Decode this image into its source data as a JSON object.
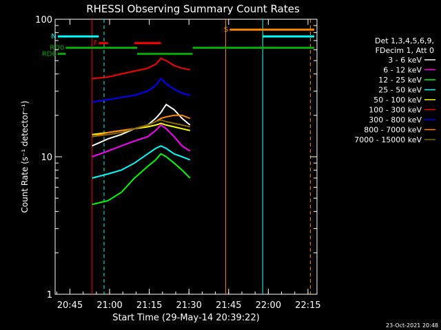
{
  "chart_data": {
    "type": "line",
    "title": "RHESSI Observing Summary Count Rates",
    "xlabel": "Start Time (29-May-14 20:39:22)",
    "ylabel": "Count Rate (s⁻¹ detector⁻¹)",
    "footer": "23-Oct-2021 20:48",
    "x_unit": "minutes since 20:39:22",
    "xlim": [
      0,
      99
    ],
    "ylim": [
      1,
      100
    ],
    "yscale": "log",
    "x_ticks": [
      {
        "label": "20:45",
        "value": 5.6
      },
      {
        "label": "21:00",
        "value": 20.6
      },
      {
        "label": "21:15",
        "value": 35.6
      },
      {
        "label": "21:30",
        "value": 50.6
      },
      {
        "label": "21:45",
        "value": 65.6
      },
      {
        "label": "22:00",
        "value": 80.6
      },
      {
        "label": "22:15",
        "value": 95.6
      }
    ],
    "y_ticks": [
      {
        "label": "1",
        "value": 1
      },
      {
        "label": "10",
        "value": 10
      },
      {
        "label": "100",
        "value": 100
      }
    ],
    "legend_header": [
      "Det 1,3,4,5,6,9,",
      "FDecim 1, Att 0"
    ],
    "legend_position": "right",
    "series": [
      {
        "name": "3 - 6 keV",
        "color": "#ffffff",
        "x": [
          14,
          20,
          25,
          30,
          35,
          38,
          40,
          42,
          45,
          48,
          51
        ],
        "y": [
          12,
          13.5,
          14.5,
          16,
          17,
          19,
          21,
          24,
          22,
          19,
          17
        ]
      },
      {
        "name": "6 - 12 keV",
        "color": "#ff00ff",
        "x": [
          14,
          20,
          25,
          30,
          35,
          38,
          40,
          42,
          45,
          48,
          51
        ],
        "y": [
          10,
          11,
          12,
          13,
          14,
          15.5,
          17,
          16,
          14,
          12,
          11
        ]
      },
      {
        "name": "12 - 25 keV",
        "color": "#00ff00",
        "x": [
          14,
          20,
          25,
          30,
          35,
          38,
          40,
          42,
          45,
          48,
          51
        ],
        "y": [
          4.5,
          4.8,
          5.5,
          7,
          8.5,
          9.5,
          10.5,
          10,
          9,
          8,
          7
        ]
      },
      {
        "name": "25 - 50 keV",
        "color": "#00ffff",
        "x": [
          14,
          20,
          25,
          30,
          35,
          38,
          40,
          42,
          45,
          48,
          51
        ],
        "y": [
          7,
          7.5,
          8,
          9,
          10.5,
          11.5,
          12,
          11.5,
          10.5,
          10,
          9.5
        ]
      },
      {
        "name": "50 - 100 keV",
        "color": "#ffff00",
        "x": [
          14,
          20,
          25,
          30,
          35,
          38,
          40,
          42,
          45,
          48,
          51
        ],
        "y": [
          14.5,
          15,
          15.5,
          16,
          16.5,
          17,
          17.5,
          17,
          16.5,
          16,
          15.5
        ]
      },
      {
        "name": "100 - 300 keV",
        "color": "#ff0000",
        "x": [
          14,
          20,
          25,
          30,
          35,
          38,
          40,
          42,
          45,
          48,
          51
        ],
        "y": [
          37,
          38,
          40,
          42,
          44,
          47,
          52,
          50,
          46,
          44,
          43
        ]
      },
      {
        "name": "300 - 800 keV",
        "color": "#0000ff",
        "x": [
          14,
          20,
          25,
          30,
          35,
          38,
          40,
          42,
          45,
          48,
          51
        ],
        "y": [
          25,
          26,
          27,
          28,
          30,
          33,
          37,
          34,
          31,
          29,
          28
        ]
      },
      {
        "name": "800 - 7000 keV",
        "color": "#ff8800",
        "x": [
          14,
          20,
          25,
          30,
          35,
          38,
          40,
          42,
          45,
          48,
          51
        ],
        "y": [
          14,
          15,
          15.5,
          16,
          17,
          18,
          19,
          19.5,
          20,
          20,
          19
        ]
      },
      {
        "name": "7000 - 15000 keV",
        "color": "#886600",
        "x": [
          14,
          20,
          25,
          30,
          35,
          38,
          40,
          42,
          45,
          48,
          51
        ],
        "y": [
          14,
          14.5,
          15,
          16,
          17,
          18,
          18.5,
          18,
          17.5,
          17,
          16.5
        ]
      }
    ],
    "vertical_lines": [
      {
        "x": 14.0,
        "color": "#ff0000",
        "dashed": false
      },
      {
        "x": 18.5,
        "color": "#00ffff",
        "dashed": true
      },
      {
        "x": 64.5,
        "color": "#ff8800",
        "dashed": false
      },
      {
        "x": 78.5,
        "color": "#00ffff",
        "dashed": false
      },
      {
        "x": 96.5,
        "color": "#ff8800",
        "dashed": true
      }
    ],
    "flag_bars": [
      {
        "label": "N",
        "color": "#00ffff",
        "segments": [
          [
            1,
            16.5
          ],
          [
            78.5,
            98
          ]
        ],
        "y": 75
      },
      {
        "label": "S",
        "color": "#ff8800",
        "segments": [
          [
            66,
            98
          ]
        ],
        "y": 84
      },
      {
        "label": "F",
        "color": "#ff0000",
        "segments": [
          [
            16.5,
            20
          ],
          [
            30,
            40
          ]
        ],
        "y": 67
      },
      {
        "label": "RD0",
        "color": "#00aa00",
        "segments": [
          [
            4,
            31
          ],
          [
            52,
            98
          ]
        ],
        "y": 62
      },
      {
        "label": "RD6",
        "color": "#00aa00",
        "segments": [
          [
            1,
            4
          ],
          [
            31,
            52
          ]
        ],
        "y": 56
      }
    ]
  }
}
